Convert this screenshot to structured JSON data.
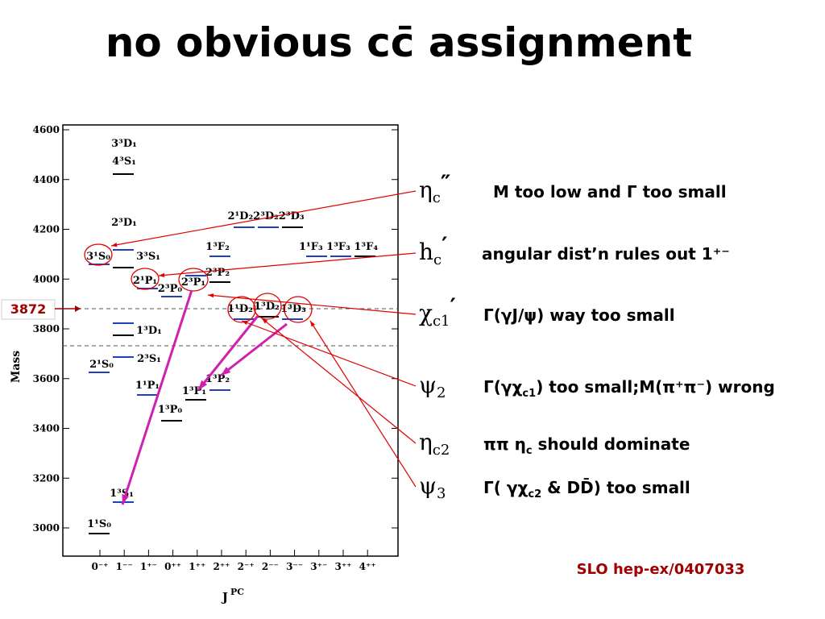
{
  "header": {
    "title": "no obvious cc̄ assignment"
  },
  "diagram": {
    "y_label": "Mass",
    "y_ticks": [
      "4600",
      "4400",
      "4200",
      "4000",
      "3800",
      "3600",
      "3400",
      "3200",
      "3000"
    ],
    "x_label": "J",
    "x_label_sup": "PC",
    "x_categories": [
      "0⁻⁺",
      "1⁻⁻",
      "1⁺⁻",
      "0⁺⁺",
      "1⁺⁺",
      "2⁺⁺",
      "2⁻⁺",
      "2⁻⁻",
      "3⁻⁻",
      "3⁺⁻",
      "3⁺⁺",
      "4⁺⁺"
    ],
    "levels": [
      "3³D₁",
      "4³S₁",
      "2³D₁",
      "3¹S₀",
      "3³S₁",
      "2¹P₁",
      "2³P₀",
      "2³P₁",
      "2³P₂",
      "1³F₂",
      "2¹D₂2³D₂2³D₃",
      "1¹F₃ 1³F₃ 1³F₄",
      "1³D₁",
      "1¹D₂",
      "1³D₂",
      "1³D₃",
      "2¹S₀",
      "2³S₁",
      "1¹P₁",
      "1³P₁",
      "1³P₂",
      "1³P₀",
      "1³S₁",
      "1¹S₀"
    ],
    "marker": "3872"
  },
  "annotations": [
    {
      "symbol": "η",
      "sub": "c",
      "mark": "″",
      "explanation": [
        "M too low and Γ too small"
      ]
    },
    {
      "symbol": "h",
      "sub": "c",
      "mark": "′",
      "explanation": [
        "angular dist’n rules out 1⁺⁻"
      ]
    },
    {
      "symbol": "χ",
      "sub": "c1",
      "mark": "′",
      "explanation": [
        "Γ(γJ/ψ) way too small"
      ]
    },
    {
      "symbol": "ψ",
      "sub": "2",
      "mark": "",
      "explanation": [
        "Γ(γχ",
        "c1",
        ") too small;M(π⁺π⁻) wrong"
      ]
    },
    {
      "symbol": "η",
      "sub": "c2",
      "mark": "",
      "explanation": [
        "ππ η",
        "c",
        " should dominate"
      ]
    },
    {
      "symbol": "ψ",
      "sub": "3",
      "mark": "",
      "explanation": [
        "Γ( γχ",
        "c2",
        " & DD̄) too small"
      ]
    }
  ],
  "citation": "SLO hep-ex/0407033"
}
